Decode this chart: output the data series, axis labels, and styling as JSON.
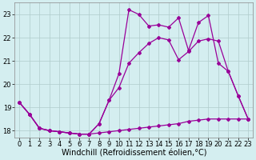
{
  "x_values": [
    0,
    1,
    2,
    3,
    4,
    5,
    6,
    7,
    8,
    9,
    10,
    11,
    12,
    13,
    14,
    15,
    16,
    17,
    18,
    19,
    20,
    21,
    22,
    23
  ],
  "line_flat": [
    19.2,
    18.7,
    18.1,
    18.0,
    17.95,
    17.9,
    17.85,
    17.85,
    17.9,
    17.95,
    18.0,
    18.05,
    18.1,
    18.15,
    18.2,
    18.25,
    18.3,
    18.4,
    18.45,
    18.5,
    18.5,
    18.5,
    18.5,
    18.5
  ],
  "line_mid": [
    19.2,
    18.7,
    18.1,
    18.0,
    17.95,
    17.9,
    17.85,
    17.85,
    18.3,
    19.3,
    19.85,
    20.9,
    21.35,
    21.75,
    22.0,
    21.9,
    21.05,
    21.4,
    21.85,
    21.95,
    21.85,
    20.55,
    19.5,
    18.5
  ],
  "line_top": [
    19.2,
    18.7,
    18.1,
    18.0,
    17.95,
    17.9,
    17.85,
    17.85,
    18.3,
    19.3,
    20.45,
    23.2,
    23.0,
    22.5,
    22.55,
    22.45,
    22.85,
    21.45,
    22.65,
    22.95,
    20.9,
    20.55,
    19.5,
    18.5
  ],
  "color": "#990099",
  "bg_color": "#d4eef0",
  "grid_color": "#b0cccc",
  "xlim": [
    -0.5,
    23.5
  ],
  "ylim": [
    17.7,
    23.5
  ],
  "yticks": [
    18,
    19,
    20,
    21,
    22,
    23
  ],
  "xticks": [
    0,
    1,
    2,
    3,
    4,
    5,
    6,
    7,
    8,
    9,
    10,
    11,
    12,
    13,
    14,
    15,
    16,
    17,
    18,
    19,
    20,
    21,
    22,
    23
  ],
  "xlabel": "Windchill (Refroidissement éolien,°C)",
  "xlabel_fontsize": 7.0,
  "tick_fontsize": 6.0,
  "line_width": 0.9,
  "marker": "D",
  "marker_size": 2.0
}
